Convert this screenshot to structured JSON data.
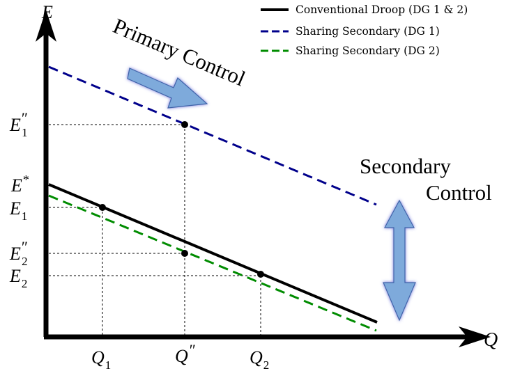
{
  "axes": {
    "x_label": "Q",
    "y_label": "E"
  },
  "legend": {
    "items": [
      {
        "label": "Conventional Droop (DG 1 & 2)",
        "color": "#000000",
        "style": "solid"
      },
      {
        "label": "Sharing Secondary (DG 1)",
        "color": "#00008b",
        "style": "dashed"
      },
      {
        "label": "Sharing Secondary (DG 2)",
        "color": "#008c00",
        "style": "dashed"
      }
    ]
  },
  "annotations": {
    "primary_control": "Primary Control",
    "secondary_control_line1": "Secondary",
    "secondary_control_line2": "Control"
  },
  "y_ticks": {
    "e1_pp": {
      "base": "E",
      "sub": "1",
      "sup": "″"
    },
    "e_star": {
      "base": "E",
      "sub": "",
      "sup": "*"
    },
    "e1": {
      "base": "E",
      "sub": "1",
      "sup": ""
    },
    "e2_pp": {
      "base": "E",
      "sub": "2",
      "sup": "″"
    },
    "e2": {
      "base": "E",
      "sub": "2",
      "sup": ""
    }
  },
  "x_ticks": {
    "q1": {
      "base": "Q",
      "sub": "1",
      "sup": ""
    },
    "q_pp": {
      "base": "Q",
      "sub": "",
      "sup": "″"
    },
    "q2": {
      "base": "Q",
      "sub": "2",
      "sup": ""
    }
  },
  "colors": {
    "conventional": "#000000",
    "dg1": "#00008b",
    "dg2": "#008c00",
    "arrow_fill": "#7eaadb",
    "arrow_stroke": "#3f63a8"
  }
}
